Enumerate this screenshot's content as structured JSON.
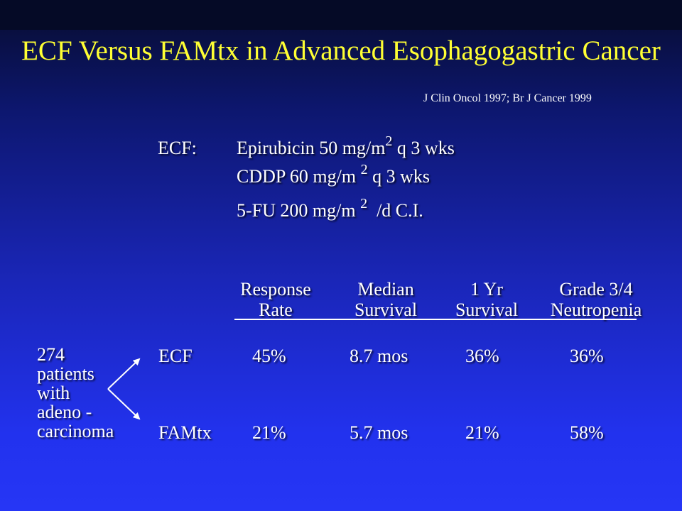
{
  "slide": {
    "title": "ECF Versus FAMtx in Advanced Esophagogastric Cancer",
    "citation": "J Clin Oncol 1997; Br J Cancer 1999"
  },
  "regimen": {
    "label": "ECF:",
    "lines": [
      {
        "drug": "Epirubicin 50 mg/m",
        "sup": "2",
        "rest": " q 3 wks"
      },
      {
        "drug": "CDDP 60 mg/m ",
        "sup": "2",
        "rest": " q 3 wks"
      },
      {
        "drug": "5-FU 200 mg/m ",
        "sup": "2",
        "rest": "  /d C.I."
      }
    ]
  },
  "table": {
    "headers": [
      {
        "line1": "Response",
        "line2": "Rate"
      },
      {
        "line1": "Median",
        "line2": "Survival"
      },
      {
        "line1": "1 Yr",
        "line2": "Survival"
      },
      {
        "line1": "Grade 3/4",
        "line2": "Neutropenia"
      }
    ],
    "rows": [
      {
        "arm": "ECF",
        "values": [
          "45%",
          "8.7 mos",
          "36%",
          "36%"
        ]
      },
      {
        "arm": "FAMtx",
        "values": [
          "21%",
          "5.7 mos",
          "21%",
          "58%"
        ]
      }
    ]
  },
  "population": {
    "lines": [
      "274",
      "patients",
      "with",
      "adeno -",
      "carcinoma"
    ]
  }
}
